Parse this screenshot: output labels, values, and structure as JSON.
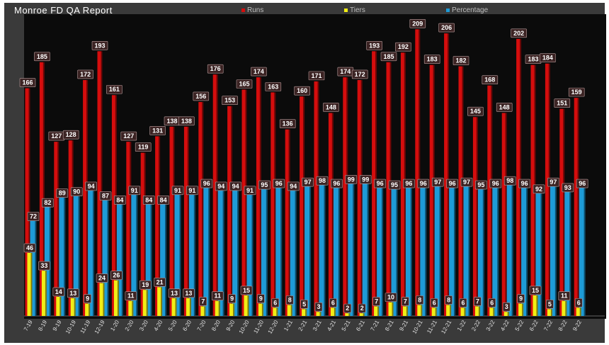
{
  "chart_data": {
    "type": "bar",
    "title": "Monroe FD QA Report",
    "legend_position": "top",
    "colors": {
      "runs": "#d50d0d",
      "tiers": "#f2ee14",
      "percentage": "#1e9bd7"
    },
    "categories": [
      "7-19",
      "8-19",
      "9-19",
      "10-19",
      "11-19",
      "12-19",
      "1-20",
      "2-20",
      "3-20",
      "4-20",
      "5-20",
      "6-20",
      "7-20",
      "8-20",
      "9-20",
      "10-20",
      "11-20",
      "12-20",
      "1-21",
      "2-21",
      "3-21",
      "4-21",
      "5-21",
      "6-21",
      "7-21",
      "8-21",
      "9-21",
      "10-21",
      "11-21",
      "12-21",
      "1-22",
      "2-22",
      "3-22",
      "4-22",
      "5-22",
      "6-22",
      "7-22",
      "8-22",
      "9-22"
    ],
    "series": [
      {
        "name": "Runs",
        "values": [
          166,
          185,
          127,
          128,
          172,
          193,
          161,
          127,
          119,
          131,
          138,
          138,
          156,
          176,
          153,
          165,
          174,
          163,
          136,
          160,
          171,
          148,
          174,
          172,
          193,
          185,
          192,
          209,
          183,
          206,
          182,
          145,
          168,
          148,
          202,
          183,
          184,
          151,
          159
        ]
      },
      {
        "name": "Tiers",
        "values": [
          46,
          33,
          14,
          13,
          9,
          24,
          26,
          11,
          19,
          21,
          13,
          13,
          7,
          11,
          9,
          15,
          9,
          6,
          8,
          5,
          3,
          6,
          2,
          2,
          7,
          10,
          7,
          8,
          6,
          8,
          6,
          7,
          6,
          3,
          9,
          15,
          5,
          11,
          6
        ]
      },
      {
        "name": "Percentage",
        "values": [
          72,
          82,
          89,
          90,
          94,
          87,
          84,
          91,
          84,
          84,
          91,
          91,
          96,
          94,
          94,
          91,
          95,
          96,
          94,
          97,
          98,
          96,
          99,
          99,
          96,
          95,
          96,
          96,
          97,
          96,
          97,
          95,
          96,
          98,
          96,
          92,
          97,
          93,
          96
        ]
      }
    ],
    "ylim": [
      0,
      220
    ]
  }
}
